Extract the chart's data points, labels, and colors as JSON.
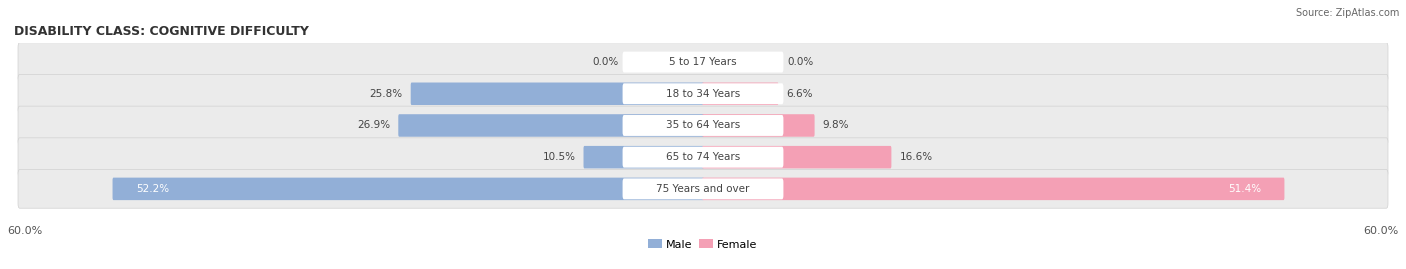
{
  "title": "DISABILITY CLASS: COGNITIVE DIFFICULTY",
  "source": "Source: ZipAtlas.com",
  "categories": [
    "5 to 17 Years",
    "18 to 34 Years",
    "35 to 64 Years",
    "65 to 74 Years",
    "75 Years and over"
  ],
  "male_values": [
    0.0,
    25.8,
    26.9,
    10.5,
    52.2
  ],
  "female_values": [
    0.0,
    6.6,
    9.8,
    16.6,
    51.4
  ],
  "max_val": 60.0,
  "male_color": "#92afd7",
  "female_color": "#f4a0b5",
  "row_bg_color": "#ebebeb",
  "row_bg_light": "#f5f5f5",
  "title_fontsize": 9,
  "label_fontsize": 7.5,
  "value_fontsize": 7.5,
  "legend_fontsize": 8
}
